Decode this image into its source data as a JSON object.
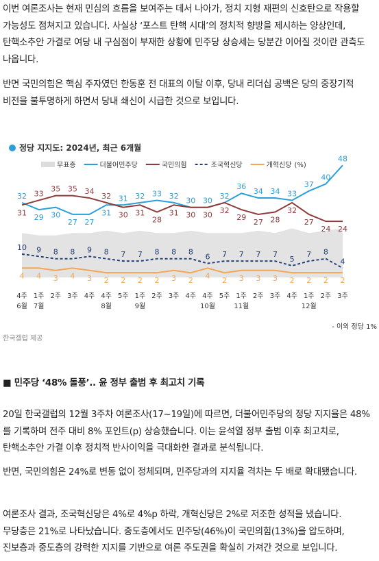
{
  "paragraphs": [
    "이번 여론조사는 현재 민심의 흐름을 보여주는 데서 나아가, 정치 지형 재편의 신호탄으로 작용할 가능성도 점쳐지고 있습니다. 사실상 ‘포스트 탄핵 시대’의 정치적 향방을 제시하는 양상인데, 탄핵소추안 가결로 여당 내 구심점이 부재한 상황에 민주당 상승세는 당분간 이어질 것이란 관측도 나옵니다.",
    "반면 국민의힘은 핵심 주자였던 한동훈 전 대표의 이탈 이후, 당내 리더십 공백은 당의 중장기적 비전을 불투명하게 하면서 당내 쇄신이 시급한 것으로 보입니다."
  ],
  "chart_data": {
    "type": "line",
    "title": "정당 지지도: 2024년, 최근 6개월",
    "unit": "(%)",
    "categories": [
      "4주",
      "1주",
      "2주",
      "3주",
      "4주",
      "4주",
      "5주",
      "1주",
      "2주",
      "3주",
      "4주",
      "4주",
      "5주",
      "1주",
      "2주",
      "3주",
      "4주",
      "1주",
      "2주",
      "3주"
    ],
    "months": [
      "6월",
      "7월",
      null,
      null,
      null,
      "8월",
      null,
      "9월",
      null,
      null,
      null,
      "10월",
      null,
      "11월",
      null,
      null,
      null,
      "12월",
      null,
      null
    ],
    "ylim": [
      0,
      50
    ],
    "series": [
      {
        "name": "무표층",
        "color": "#dcdcdc",
        "style": "area",
        "values": [
          19,
          18,
          18,
          19,
          19,
          20,
          19,
          20,
          19,
          19,
          20,
          19,
          19,
          19,
          20,
          19,
          21,
          19,
          20,
          21
        ]
      },
      {
        "name": "더불어민주당",
        "color": "#2b9fd9",
        "style": "solid",
        "values": [
          32,
          29,
          30,
          27,
          27,
          31,
          31,
          32,
          33,
          32,
          30,
          30,
          32,
          36,
          34,
          34,
          33,
          37,
          40,
          48
        ]
      },
      {
        "name": "국민의힘",
        "color": "#8e3b3b",
        "style": "solid",
        "values": [
          31,
          33,
          35,
          35,
          34,
          32,
          30,
          31,
          28,
          31,
          30,
          30,
          32,
          29,
          27,
          28,
          32,
          27,
          24,
          24
        ]
      },
      {
        "name": "조국혁신당",
        "color": "#223e78",
        "style": "dashed",
        "values": [
          10,
          9,
          8,
          8,
          9,
          8,
          7,
          7,
          8,
          8,
          8,
          6,
          7,
          7,
          7,
          7,
          5,
          7,
          8,
          4
        ]
      },
      {
        "name": "개혁신당",
        "color": "#f4a651",
        "style": "solid",
        "values": [
          4,
          4,
          3,
          4,
          3,
          2,
          2,
          2,
          2,
          3,
          2,
          4,
          2,
          3,
          3,
          3,
          2,
          2,
          2,
          2
        ]
      }
    ],
    "note": "- 이외 정당 1%",
    "source": "한국갤럽 제공"
  },
  "heading": "■ 민주당 ‘48% 돌풍’.. 윤 정부 출범 후 최고치 기록",
  "paragraphs2": [
    "20일 한국갤럽의 12월 3주차 여론조사(17~19일)에 따르면, 더불어민주당의 정당 지지율은 48%를 기록하며 전주 대비 8% 포인트(p) 상승했습니다. 이는 윤석열 정부 출범 이후 최고치로, 탄핵소추안 가결 이후 정치적 반사이익을 극대화한 결과로 분석됩니다.",
    "반면, 국민의힘은 24%로 변동 없이 정체되며, 민주당과의 지지율 격차는 두 배로 확대됐습니다.",
    "여론조사 결과, 조국혁신당은 4%로 4%p 하락, 개혁신당은 2%로 저조한 성적을 냈습니다. 무당층은 21%로 나타났습니다. 중도층에서도 민주당(46%)이 국민의힘(13%)을 압도하며, 진보층과 중도층의 강력한 지지를 기반으로 여론 주도권을 확실히 가져간 것으로 보입니다."
  ]
}
